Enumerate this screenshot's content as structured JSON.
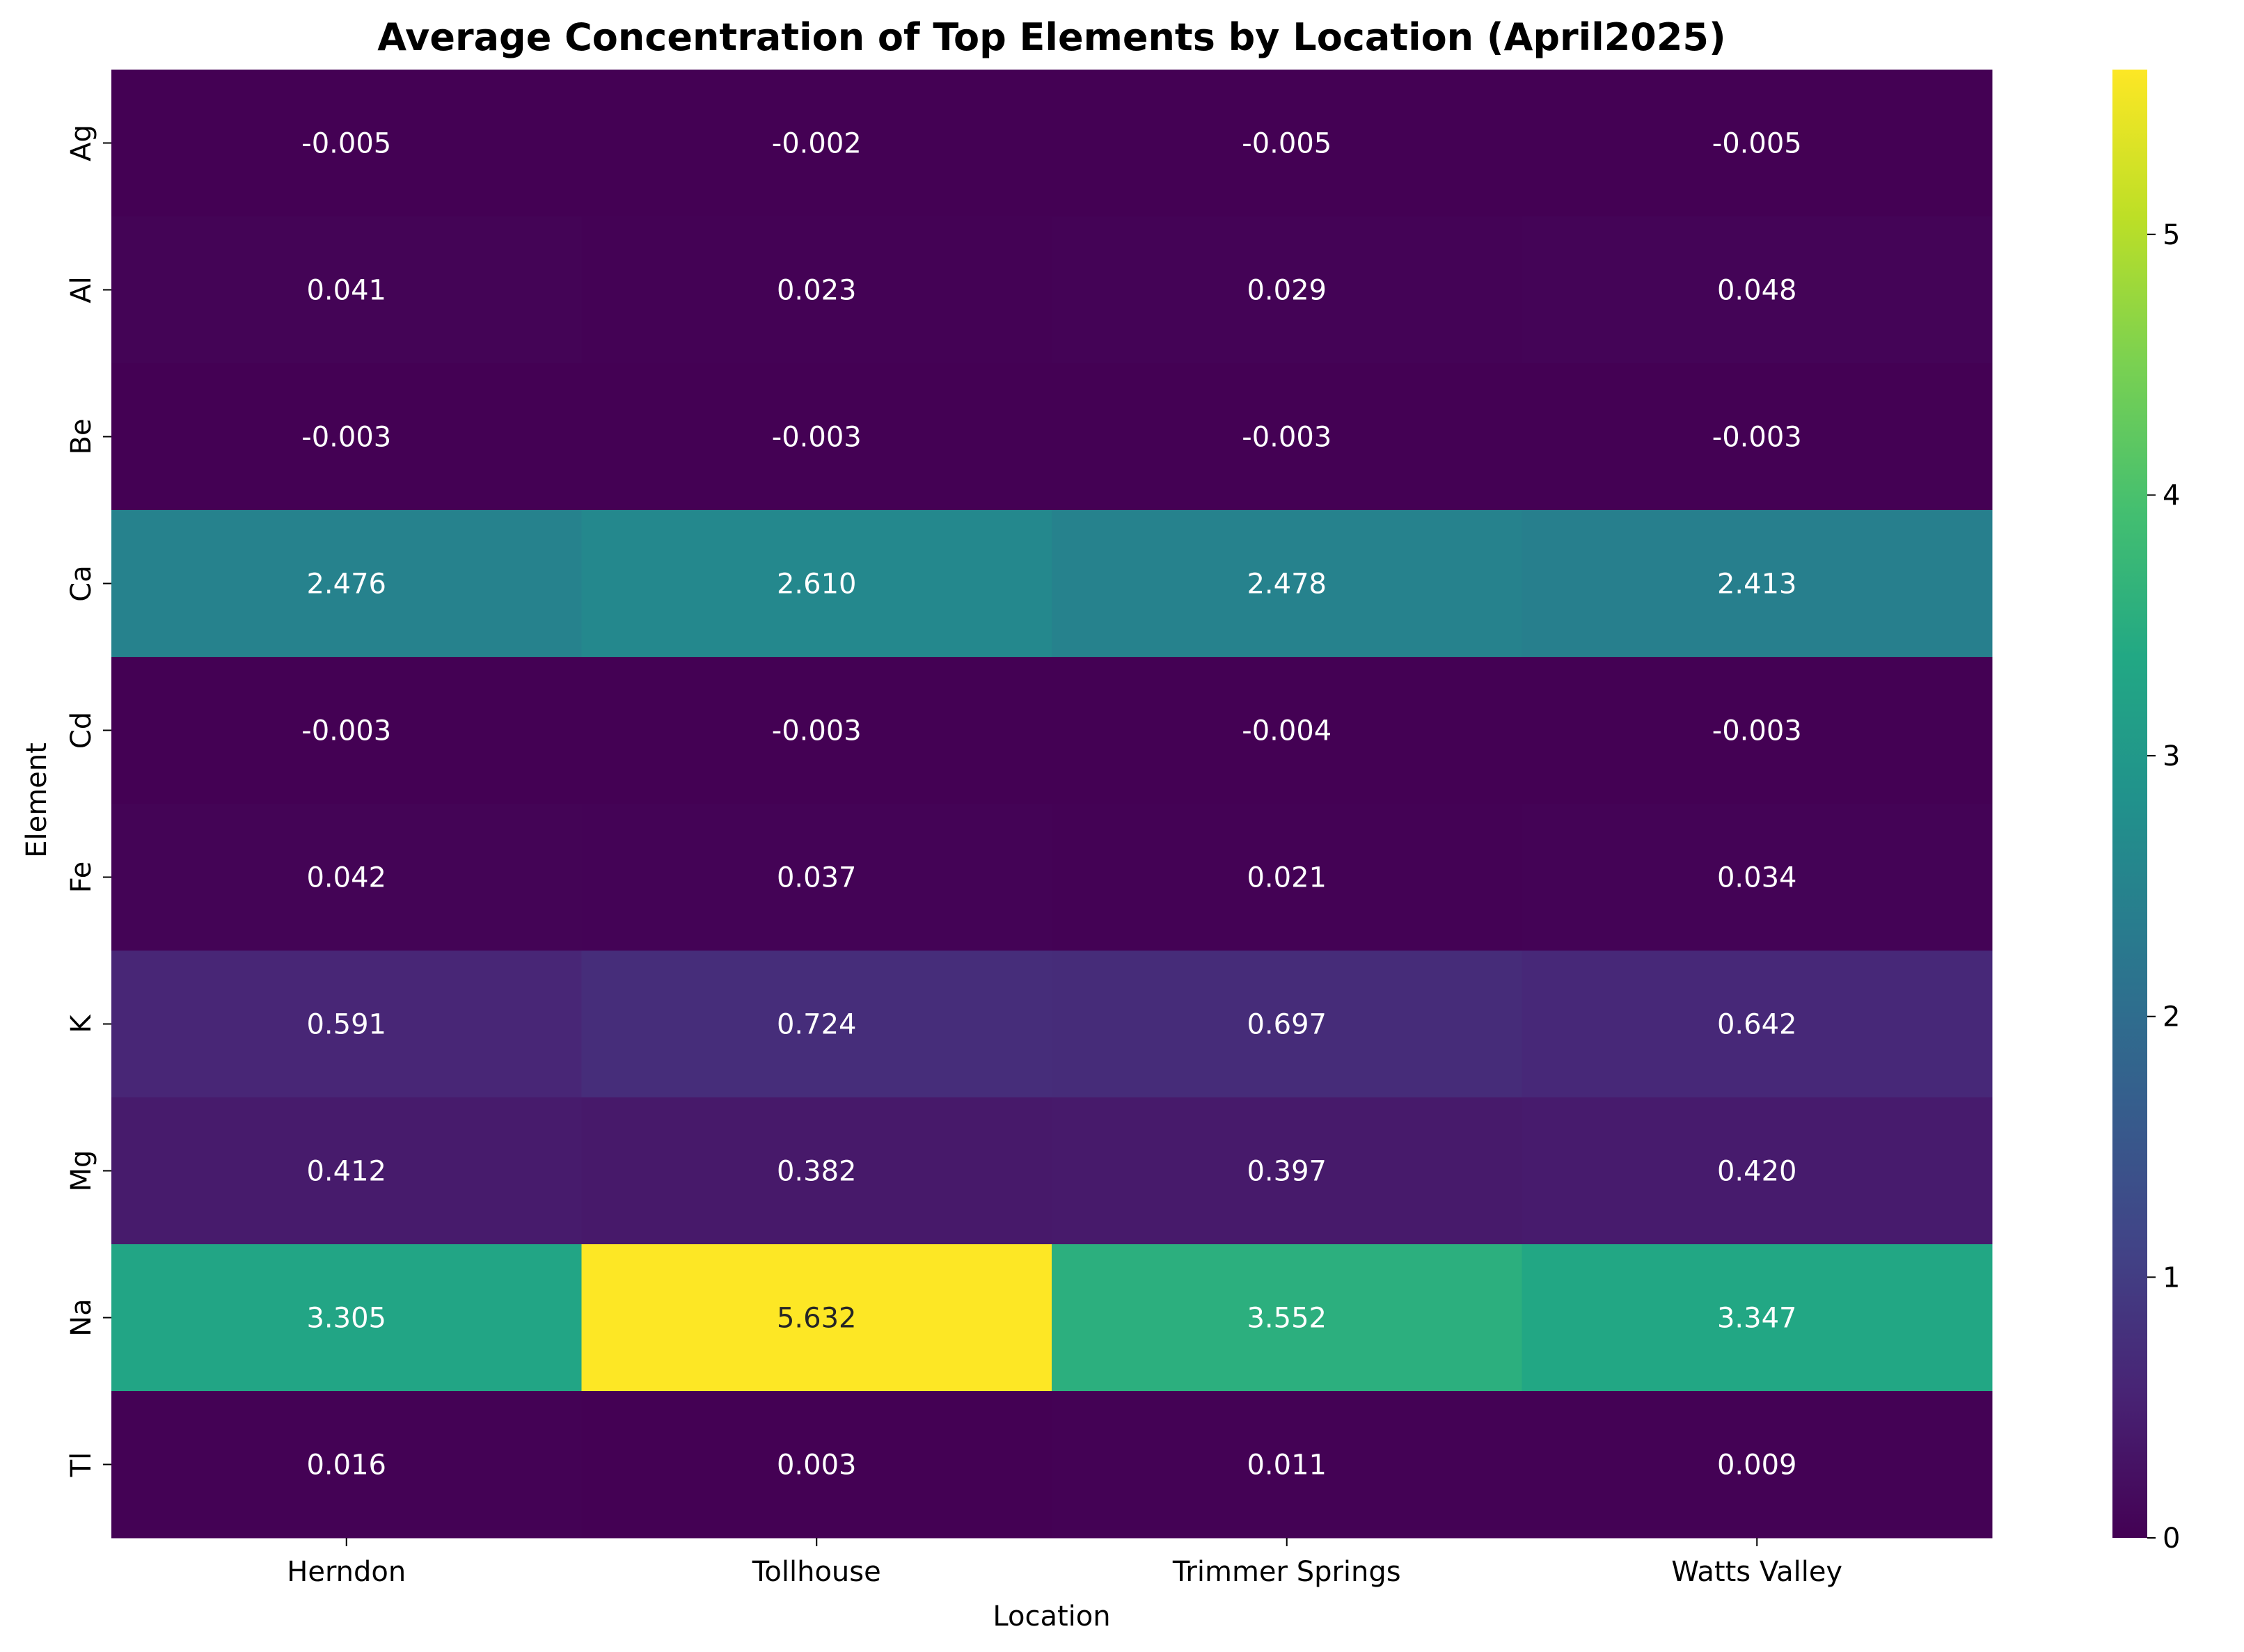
{
  "chart_data": {
    "type": "heatmap",
    "title": "Average Concentration of Top Elements by Location (April2025)",
    "xlabel": "Location",
    "ylabel": "Element",
    "x_categories": [
      "Herndon",
      "Tollhouse",
      "Trimmer Springs",
      "Watts Valley"
    ],
    "y_categories": [
      "Ag",
      "Al",
      "Be",
      "Ca",
      "Cd",
      "Fe",
      "K",
      "Mg",
      "Na",
      "Tl"
    ],
    "values": [
      [
        -0.005,
        -0.002,
        -0.005,
        -0.005
      ],
      [
        0.041,
        0.023,
        0.029,
        0.048
      ],
      [
        -0.003,
        -0.003,
        -0.003,
        -0.003
      ],
      [
        2.476,
        2.61,
        2.478,
        2.413
      ],
      [
        -0.003,
        -0.003,
        -0.004,
        -0.003
      ],
      [
        0.042,
        0.037,
        0.021,
        0.034
      ],
      [
        0.591,
        0.724,
        0.697,
        0.642
      ],
      [
        0.412,
        0.382,
        0.397,
        0.42
      ],
      [
        3.305,
        5.632,
        3.552,
        3.347
      ],
      [
        0.016,
        0.003,
        0.011,
        0.009
      ]
    ],
    "value_labels": [
      [
        "-0.005",
        "-0.002",
        "-0.005",
        "-0.005"
      ],
      [
        "0.041",
        "0.023",
        "0.029",
        "0.048"
      ],
      [
        "-0.003",
        "-0.003",
        "-0.003",
        "-0.003"
      ],
      [
        "2.476",
        "2.610",
        "2.478",
        "2.413"
      ],
      [
        "-0.003",
        "-0.003",
        "-0.004",
        "-0.003"
      ],
      [
        "0.042",
        "0.037",
        "0.021",
        "0.034"
      ],
      [
        "0.591",
        "0.724",
        "0.697",
        "0.642"
      ],
      [
        "0.412",
        "0.382",
        "0.397",
        "0.420"
      ],
      [
        "3.305",
        "5.632",
        "3.552",
        "3.347"
      ],
      [
        "0.016",
        "0.003",
        "0.011",
        "0.009"
      ]
    ],
    "colormap": "viridis",
    "color_range": [
      0,
      5.632
    ],
    "colorbar_ticks": [
      "0",
      "1",
      "2",
      "3",
      "4",
      "5"
    ],
    "annotations": true,
    "grid": false,
    "legend": "colorbar-right"
  }
}
